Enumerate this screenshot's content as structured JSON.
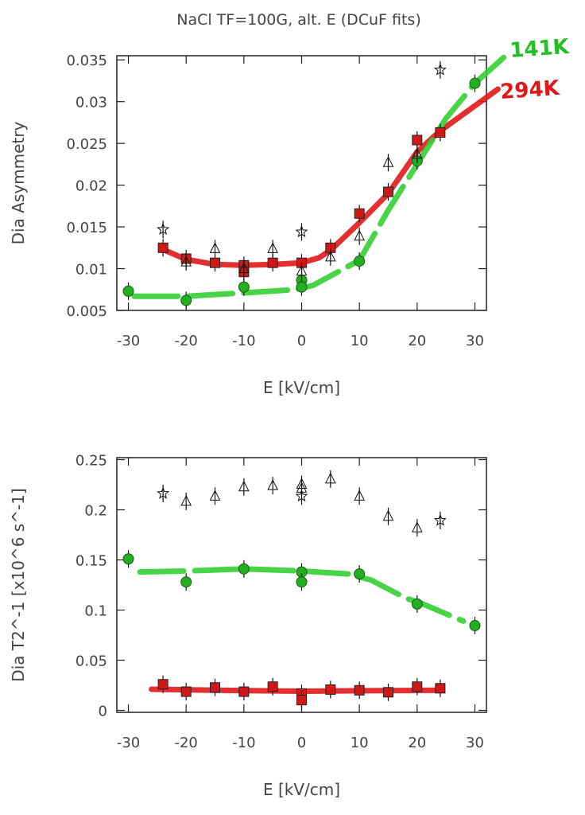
{
  "title": "NaCl TF=100G, alt. E (DCuF fits)",
  "annotations": [
    {
      "text": "141K",
      "color": "#22c022"
    },
    {
      "text": "294K",
      "color": "#e01818"
    }
  ],
  "chart_data": [
    {
      "type": "scatter",
      "xlabel": "E [kV/cm]",
      "ylabel": "Dia Asymmetry",
      "xlim": [
        -32,
        32
      ],
      "ylim": [
        0.005,
        0.0355
      ],
      "xticks": [
        "-30",
        "-20",
        "-10",
        "0",
        "10",
        "20",
        "30"
      ],
      "yticks": [
        "0.005",
        "0.01",
        "0.015",
        "0.02",
        "0.025",
        "0.03",
        "0.035"
      ],
      "grid": false,
      "series": [
        {
          "marker": "square",
          "color": "#d01818",
          "points": [
            [
              -24,
              0.0125
            ],
            [
              -20,
              0.0112
            ],
            [
              -15,
              0.0107
            ],
            [
              -10,
              0.0104
            ],
            [
              -10,
              0.0096
            ],
            [
              -5,
              0.0107
            ],
            [
              0,
              0.0107
            ],
            [
              5,
              0.0125
            ],
            [
              10,
              0.0166
            ],
            [
              15,
              0.0192
            ],
            [
              20,
              0.0254
            ],
            [
              24,
              0.0263
            ]
          ]
        },
        {
          "marker": "circle",
          "color": "#22b022",
          "points": [
            [
              -30,
              0.0073
            ],
            [
              -20,
              0.0062
            ],
            [
              -10,
              0.0078
            ],
            [
              0,
              0.0086
            ],
            [
              0,
              0.0078
            ],
            [
              10,
              0.0109
            ],
            [
              20,
              0.0229
            ],
            [
              30,
              0.0322
            ]
          ]
        },
        {
          "marker": "triangle",
          "color": "#000000",
          "points": [
            [
              -20,
              0.0108
            ],
            [
              -15,
              0.0124
            ],
            [
              -10,
              0.01
            ],
            [
              -5,
              0.0124
            ],
            [
              0,
              0.0097
            ],
            [
              5,
              0.0114
            ],
            [
              10,
              0.0139
            ],
            [
              15,
              0.0227
            ],
            [
              20,
              0.0237
            ]
          ]
        },
        {
          "marker": "star",
          "color": "#000000",
          "points": [
            [
              -24,
              0.0147
            ],
            [
              0,
              0.0144
            ],
            [
              24,
              0.0338
            ]
          ]
        }
      ],
      "fits": [
        {
          "label": "294K",
          "color": "#e01818",
          "dashed": false,
          "points": [
            [
              -24,
              0.0123
            ],
            [
              -20,
              0.0111
            ],
            [
              -15,
              0.0105
            ],
            [
              -10,
              0.0104
            ],
            [
              -5,
              0.0105
            ],
            [
              0,
              0.0107
            ],
            [
              3,
              0.0113
            ],
            [
              5,
              0.0122
            ],
            [
              10,
              0.0155
            ],
            [
              15,
              0.019
            ],
            [
              20,
              0.024
            ],
            [
              24,
              0.0265
            ],
            [
              34,
              0.0315
            ]
          ]
        },
        {
          "label": "141K",
          "color": "#33d033",
          "dashed": true,
          "points": [
            [
              -29,
              0.0067
            ],
            [
              -20,
              0.0067
            ],
            [
              -10,
              0.0071
            ],
            [
              -1,
              0.0075
            ],
            [
              2,
              0.008
            ],
            [
              10,
              0.011
            ],
            [
              15,
              0.017
            ],
            [
              20,
              0.0225
            ],
            [
              25,
              0.028
            ],
            [
              30,
              0.0322
            ],
            [
              35,
              0.0353
            ]
          ]
        }
      ]
    },
    {
      "type": "scatter",
      "xlabel": "E [kV/cm]",
      "ylabel": "Dia T2^-1 [x10^6 s^-1]",
      "xlim": [
        -32,
        32
      ],
      "ylim": [
        -0.002,
        0.252
      ],
      "xticks": [
        "-30",
        "-20",
        "-10",
        "0",
        "10",
        "20",
        "30"
      ],
      "yticks": [
        "0",
        "0.05",
        "0.1",
        "0.15",
        "0.2",
        "0.25"
      ],
      "grid": false,
      "series": [
        {
          "marker": "square",
          "color": "#d01818",
          "points": [
            [
              -24,
              0.026
            ],
            [
              -20,
              0.0186
            ],
            [
              -15,
              0.0228
            ],
            [
              -10,
              0.0186
            ],
            [
              -5,
              0.0236
            ],
            [
              0,
              0.0168
            ],
            [
              0,
              0.0102
            ],
            [
              5,
              0.0207
            ],
            [
              10,
              0.02
            ],
            [
              15,
              0.018
            ],
            [
              20,
              0.0236
            ],
            [
              24,
              0.022
            ]
          ]
        },
        {
          "marker": "circle",
          "color": "#22b022",
          "points": [
            [
              -30,
              0.151
            ],
            [
              -20,
              0.128
            ],
            [
              -10,
              0.141
            ],
            [
              0,
              0.138
            ],
            [
              0,
              0.128
            ],
            [
              10,
              0.136
            ],
            [
              20,
              0.106
            ],
            [
              30,
              0.0845
            ]
          ]
        },
        {
          "marker": "triangle",
          "color": "#000000",
          "points": [
            [
              -20,
              0.2084
            ],
            [
              -15,
              0.2136
            ],
            [
              -10,
              0.2228
            ],
            [
              -5,
              0.2241
            ],
            [
              0,
              0.2254
            ],
            [
              0,
              0.2215
            ],
            [
              5,
              0.2307
            ],
            [
              10,
              0.2136
            ],
            [
              15,
              0.1935
            ],
            [
              20,
              0.182
            ]
          ]
        },
        {
          "marker": "star",
          "color": "#000000",
          "points": [
            [
              -24,
              0.2163
            ],
            [
              0,
              0.2136
            ],
            [
              24,
              0.1894
            ]
          ]
        }
      ],
      "fits": [
        {
          "label": "294K",
          "color": "#e01818",
          "dashed": false,
          "points": [
            [
              -26,
              0.021
            ],
            [
              -15,
              0.02
            ],
            [
              0,
              0.019
            ],
            [
              10,
              0.0195
            ],
            [
              24,
              0.02
            ]
          ]
        },
        {
          "label": "141K",
          "color": "#33d033",
          "dashed": true,
          "points": [
            [
              -28,
              0.138
            ],
            [
              -20,
              0.139
            ],
            [
              -10,
              0.141
            ],
            [
              0,
              0.139
            ],
            [
              8,
              0.136
            ],
            [
              12,
              0.13
            ],
            [
              18,
              0.112
            ],
            [
              21,
              0.106
            ],
            [
              28,
              0.089
            ]
          ]
        }
      ]
    }
  ]
}
